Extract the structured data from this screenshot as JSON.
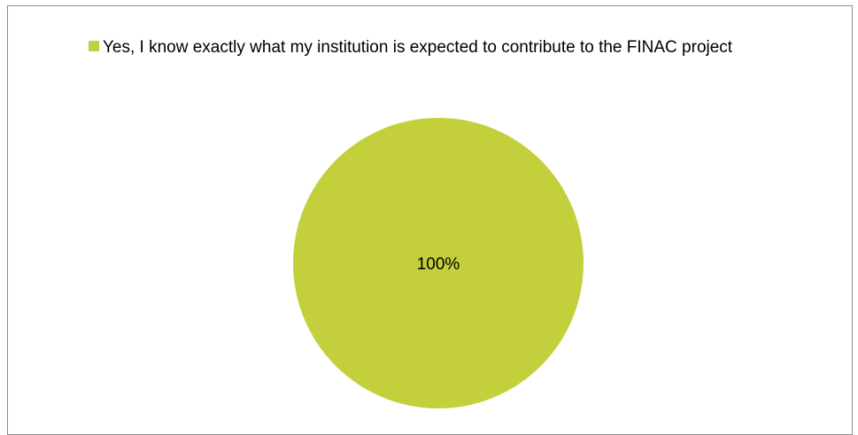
{
  "chart_data": {
    "type": "pie",
    "title": "",
    "legend_position": "top",
    "slices": [
      {
        "label": "Yes, I know exactly what my institution is expected to contribute to the FINAC project",
        "value": 100,
        "value_label": "100%",
        "color": "#c3d03b"
      }
    ]
  }
}
